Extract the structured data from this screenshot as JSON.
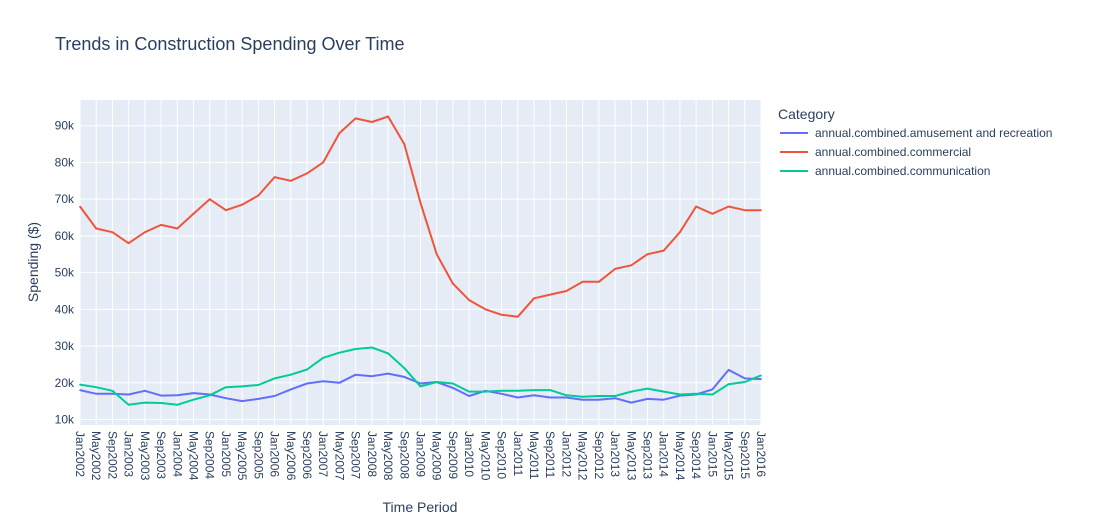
{
  "chart_data": {
    "type": "line",
    "title": "Trends in Construction Spending Over Time",
    "xlabel": "Time Period",
    "ylabel": "Spending ($)",
    "legend_title": "Category",
    "legend_position": "right",
    "grid": true,
    "colors": {
      "background": "#e5ecf6",
      "grid": "#ffffff",
      "text": "#2a3f5f"
    },
    "x_range": [
      "2002-01",
      "2016-01"
    ],
    "ylim": [
      8500,
      97000
    ],
    "y_ticks": [
      10000,
      20000,
      30000,
      40000,
      50000,
      60000,
      70000,
      80000,
      90000
    ],
    "y_tick_labels": [
      "10k",
      "20k",
      "30k",
      "40k",
      "50k",
      "60k",
      "70k",
      "80k",
      "90k"
    ],
    "x_tick_labels": [
      "Jan2002",
      "May2002",
      "Sep2002",
      "Jan2003",
      "May2003",
      "Sep2003",
      "Jan2004",
      "May2004",
      "Sep2004",
      "Jan2005",
      "May2005",
      "Sep2005",
      "Jan2006",
      "May2006",
      "Sep2006",
      "Jan2007",
      "May2007",
      "Sep2007",
      "Jan2008",
      "May2008",
      "Sep2008",
      "Jan2009",
      "May2009",
      "Sep2009",
      "Jan2010",
      "May2010",
      "Sep2010",
      "Jan2011",
      "May2011",
      "Sep2011",
      "Jan2012",
      "May2012",
      "Sep2012",
      "Jan2013",
      "May2013",
      "Sep2013",
      "Jan2014",
      "May2014",
      "Sep2014",
      "Jan2015",
      "May2015",
      "Sep2015",
      "Jan2016"
    ],
    "series": [
      {
        "name": "annual.combined.amusement and recreation",
        "color": "#636efa",
        "points": [
          [
            "2002-01",
            18000
          ],
          [
            "2002-05",
            17000
          ],
          [
            "2002-09",
            17000
          ],
          [
            "2003-01",
            16800
          ],
          [
            "2003-05",
            17800
          ],
          [
            "2003-09",
            16500
          ],
          [
            "2004-01",
            16600
          ],
          [
            "2004-05",
            17200
          ],
          [
            "2004-09",
            16800
          ],
          [
            "2005-01",
            15800
          ],
          [
            "2005-05",
            15000
          ],
          [
            "2005-09",
            15600
          ],
          [
            "2006-01",
            16400
          ],
          [
            "2006-05",
            18200
          ],
          [
            "2006-09",
            19800
          ],
          [
            "2007-01",
            20400
          ],
          [
            "2007-05",
            20000
          ],
          [
            "2007-09",
            22200
          ],
          [
            "2008-01",
            21800
          ],
          [
            "2008-05",
            22500
          ],
          [
            "2008-09",
            21600
          ],
          [
            "2009-01",
            19800
          ],
          [
            "2009-05",
            20200
          ],
          [
            "2009-09",
            18600
          ],
          [
            "2010-01",
            16400
          ],
          [
            "2010-05",
            17800
          ],
          [
            "2010-09",
            17000
          ],
          [
            "2011-01",
            16000
          ],
          [
            "2011-05",
            16600
          ],
          [
            "2011-09",
            16000
          ],
          [
            "2012-01",
            16000
          ],
          [
            "2012-05",
            15400
          ],
          [
            "2012-09",
            15400
          ],
          [
            "2013-01",
            15800
          ],
          [
            "2013-05",
            14600
          ],
          [
            "2013-09",
            15600
          ],
          [
            "2014-01",
            15400
          ],
          [
            "2014-05",
            16500
          ],
          [
            "2014-09",
            16800
          ],
          [
            "2015-01",
            18200
          ],
          [
            "2015-05",
            23500
          ],
          [
            "2015-09",
            21200
          ],
          [
            "2016-01",
            21000
          ]
        ]
      },
      {
        "name": "annual.combined.commercial",
        "color": "#ef553b",
        "points": [
          [
            "2002-01",
            68000
          ],
          [
            "2002-05",
            62000
          ],
          [
            "2002-09",
            61000
          ],
          [
            "2003-01",
            58000
          ],
          [
            "2003-05",
            61000
          ],
          [
            "2003-09",
            63000
          ],
          [
            "2004-01",
            62000
          ],
          [
            "2004-05",
            66000
          ],
          [
            "2004-09",
            70000
          ],
          [
            "2005-01",
            67000
          ],
          [
            "2005-05",
            68500
          ],
          [
            "2005-09",
            71000
          ],
          [
            "2006-01",
            76000
          ],
          [
            "2006-05",
            75000
          ],
          [
            "2006-09",
            77000
          ],
          [
            "2007-01",
            80000
          ],
          [
            "2007-05",
            88000
          ],
          [
            "2007-09",
            92000
          ],
          [
            "2008-01",
            91000
          ],
          [
            "2008-05",
            92500
          ],
          [
            "2008-09",
            85000
          ],
          [
            "2009-01",
            69000
          ],
          [
            "2009-05",
            55000
          ],
          [
            "2009-09",
            47000
          ],
          [
            "2010-01",
            42500
          ],
          [
            "2010-05",
            40000
          ],
          [
            "2010-09",
            38500
          ],
          [
            "2011-01",
            38000
          ],
          [
            "2011-05",
            43000
          ],
          [
            "2011-09",
            44000
          ],
          [
            "2012-01",
            45000
          ],
          [
            "2012-05",
            47500
          ],
          [
            "2012-09",
            47500
          ],
          [
            "2013-01",
            51000
          ],
          [
            "2013-05",
            52000
          ],
          [
            "2013-09",
            55000
          ],
          [
            "2014-01",
            56000
          ],
          [
            "2014-05",
            61000
          ],
          [
            "2014-09",
            68000
          ],
          [
            "2015-01",
            66000
          ],
          [
            "2015-05",
            68000
          ],
          [
            "2015-09",
            67000
          ],
          [
            "2016-01",
            67000
          ]
        ]
      },
      {
        "name": "annual.combined.communication",
        "color": "#00cc96",
        "points": [
          [
            "2002-01",
            19500
          ],
          [
            "2002-05",
            18800
          ],
          [
            "2002-09",
            17800
          ],
          [
            "2003-01",
            14000
          ],
          [
            "2003-05",
            14600
          ],
          [
            "2003-09",
            14500
          ],
          [
            "2004-01",
            14000
          ],
          [
            "2004-05",
            15400
          ],
          [
            "2004-09",
            16600
          ],
          [
            "2005-01",
            18800
          ],
          [
            "2005-05",
            19000
          ],
          [
            "2005-09",
            19400
          ],
          [
            "2006-01",
            21200
          ],
          [
            "2006-05",
            22200
          ],
          [
            "2006-09",
            23600
          ],
          [
            "2007-01",
            26800
          ],
          [
            "2007-05",
            28200
          ],
          [
            "2007-09",
            29200
          ],
          [
            "2008-01",
            29600
          ],
          [
            "2008-05",
            28000
          ],
          [
            "2008-09",
            24000
          ],
          [
            "2009-01",
            19000
          ],
          [
            "2009-05",
            20200
          ],
          [
            "2009-09",
            19800
          ],
          [
            "2010-01",
            17600
          ],
          [
            "2010-05",
            17600
          ],
          [
            "2010-09",
            17800
          ],
          [
            "2011-01",
            17800
          ],
          [
            "2011-05",
            18000
          ],
          [
            "2011-09",
            18000
          ],
          [
            "2012-01",
            16600
          ],
          [
            "2012-05",
            16200
          ],
          [
            "2012-09",
            16400
          ],
          [
            "2013-01",
            16400
          ],
          [
            "2013-05",
            17600
          ],
          [
            "2013-09",
            18400
          ],
          [
            "2014-01",
            17600
          ],
          [
            "2014-05",
            16800
          ],
          [
            "2014-09",
            17000
          ],
          [
            "2015-01",
            16800
          ],
          [
            "2015-05",
            19600
          ],
          [
            "2015-09",
            20200
          ],
          [
            "2016-01",
            22000
          ]
        ]
      }
    ]
  }
}
